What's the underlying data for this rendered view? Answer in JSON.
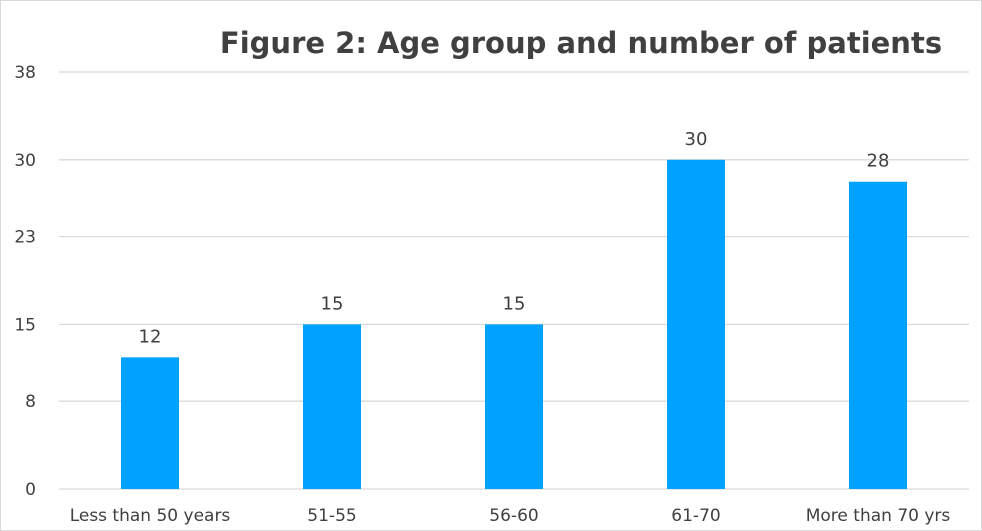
{
  "chart_data": {
    "type": "bar",
    "title": "Figure 2: Age group and number of patients",
    "categories": [
      "Less than 50 years",
      "51-55",
      "56-60",
      "61-70",
      "More than 70 yrs"
    ],
    "values": [
      12,
      15,
      15,
      30,
      28
    ],
    "data_labels": [
      "12",
      "15",
      "15",
      "30",
      "28"
    ],
    "y_ticks": [
      0,
      8,
      15,
      23,
      30,
      38
    ],
    "y_tick_labels": [
      "0",
      "8",
      "15",
      "23",
      "30",
      "38"
    ],
    "ylim": [
      0,
      38
    ],
    "xlabel": "",
    "ylabel": "",
    "grid": true,
    "legend": "none",
    "bar_color": "#00a2ff",
    "text_color": "#404040",
    "grid_color": "#d9d9d9"
  }
}
